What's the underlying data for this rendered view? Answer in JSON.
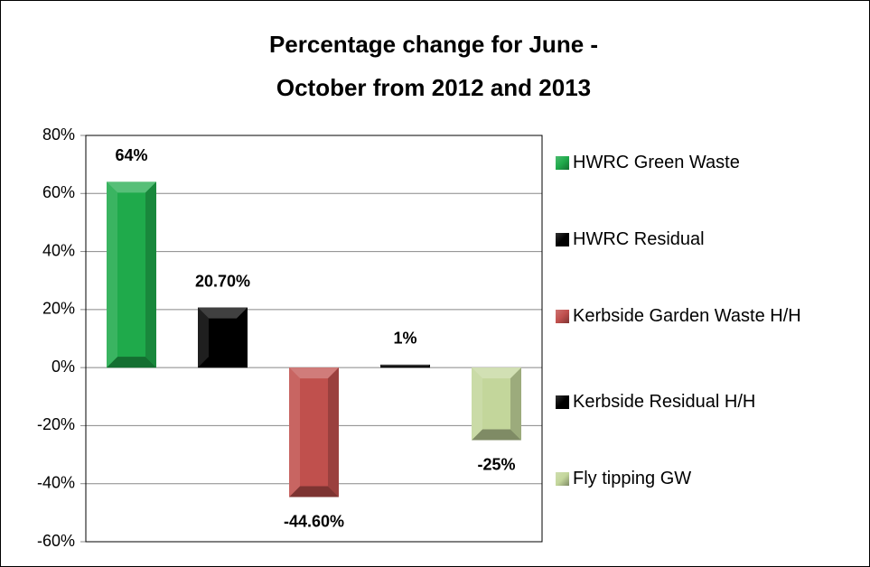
{
  "chart_data": {
    "type": "bar",
    "title": [
      "Percentage change for June -",
      "October  from 2012  and 2013"
    ],
    "series": [
      {
        "name": "HWRC Green Waste",
        "color": "#1faa4b",
        "values": [
          64
        ],
        "value_labels": [
          "64%"
        ]
      },
      {
        "name": "HWRC Residual",
        "color": "#000000",
        "values": [
          20.7
        ],
        "value_labels": [
          "20.70%"
        ]
      },
      {
        "name": "Kerbside Garden Waste H/H",
        "color": "#c0504d",
        "values": [
          -44.6
        ],
        "value_labels": [
          "-44.60%"
        ]
      },
      {
        "name": "Kerbside Residual H/H",
        "color": "#000000",
        "values": [
          1
        ],
        "value_labels": [
          "1%"
        ]
      },
      {
        "name": "Fly tipping GW",
        "color": "#c3d69b",
        "values": [
          -25
        ],
        "value_labels": [
          "-25%"
        ]
      }
    ],
    "ylim": [
      -60,
      80
    ],
    "yticks": [
      {
        "value": -60,
        "label": "-60%"
      },
      {
        "value": -40,
        "label": "-40%"
      },
      {
        "value": -20,
        "label": "-20%"
      },
      {
        "value": 0,
        "label": "0%"
      },
      {
        "value": 20,
        "label": "20%"
      },
      {
        "value": 40,
        "label": "40%"
      },
      {
        "value": 60,
        "label": "60%"
      },
      {
        "value": 80,
        "label": "80%"
      }
    ],
    "grid": true,
    "legend": "right"
  }
}
